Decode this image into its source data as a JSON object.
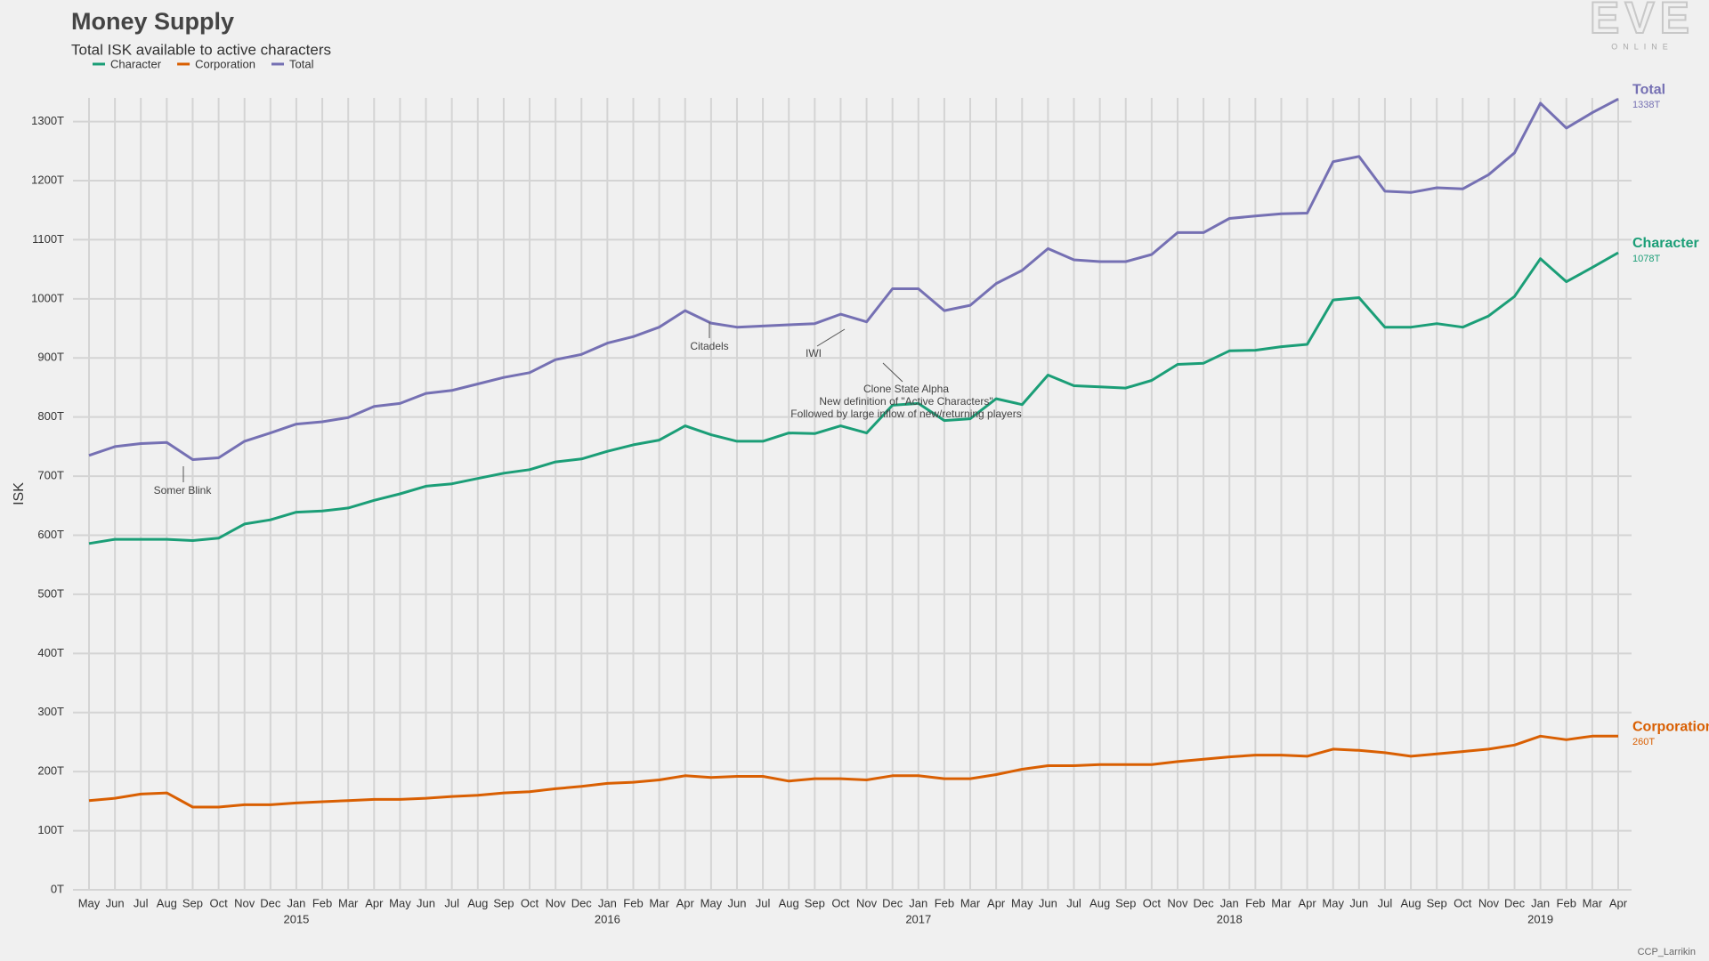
{
  "chart_data": {
    "type": "line",
    "title": "Money Supply",
    "subtitle": "Total ISK available to active characters",
    "y_label": "ISK",
    "logo": {
      "text": "EVE",
      "subtext": "ONLINE"
    },
    "credit": "CCP_Larrikin",
    "grid": true,
    "legend": "top-left",
    "categories": [
      "May",
      "Jun",
      "Jul",
      "Aug",
      "Sep",
      "Oct",
      "Nov",
      "Dec",
      "Jan",
      "Feb",
      "Mar",
      "Apr",
      "May",
      "Jun",
      "Jul",
      "Aug",
      "Sep",
      "Oct",
      "Nov",
      "Dec",
      "Jan",
      "Feb",
      "Mar",
      "Apr",
      "May",
      "Jun",
      "Jul",
      "Aug",
      "Sep",
      "Oct",
      "Nov",
      "Dec",
      "Jan",
      "Feb",
      "Mar",
      "Apr",
      "May",
      "Jun",
      "Jul",
      "Aug",
      "Sep",
      "Oct",
      "Nov",
      "Dec",
      "Jan",
      "Feb",
      "Mar",
      "Apr",
      "May",
      "Jun",
      "Jul",
      "Aug",
      "Sep",
      "Oct",
      "Nov",
      "Dec",
      "Jan",
      "Feb",
      "Mar",
      "Apr"
    ],
    "year_labels": [
      null,
      null,
      null,
      null,
      null,
      null,
      null,
      null,
      "2015",
      null,
      null,
      null,
      null,
      null,
      null,
      null,
      null,
      null,
      null,
      null,
      "2016",
      null,
      null,
      null,
      null,
      null,
      null,
      null,
      null,
      null,
      null,
      null,
      "2017",
      null,
      null,
      null,
      null,
      null,
      null,
      null,
      null,
      null,
      null,
      null,
      "2018",
      null,
      null,
      null,
      null,
      null,
      null,
      null,
      null,
      null,
      null,
      null,
      "2019",
      null,
      null,
      null
    ],
    "ylim": [
      0,
      1340
    ],
    "yticks": [
      {
        "value": 0,
        "label": "0T"
      },
      {
        "value": 100,
        "label": "100T"
      },
      {
        "value": 200,
        "label": "200T"
      },
      {
        "value": 300,
        "label": "300T"
      },
      {
        "value": 400,
        "label": "400T"
      },
      {
        "value": 500,
        "label": "500T"
      },
      {
        "value": 600,
        "label": "600T"
      },
      {
        "value": 700,
        "label": "700T"
      },
      {
        "value": 800,
        "label": "800T"
      },
      {
        "value": 900,
        "label": "900T"
      },
      {
        "value": 1000,
        "label": "1000T"
      },
      {
        "value": 1100,
        "label": "1100T"
      },
      {
        "value": 1200,
        "label": "1200T"
      },
      {
        "value": 1300,
        "label": "1300T"
      }
    ],
    "series": [
      {
        "name": "Character",
        "color": "#1b9e77",
        "values": [
          586,
          593,
          593,
          593,
          591,
          595,
          619,
          626,
          639,
          641,
          646,
          659,
          670,
          683,
          687,
          696,
          705,
          711,
          724,
          729,
          742,
          753,
          761,
          785,
          770,
          759,
          759,
          773,
          772,
          785,
          773,
          820,
          823,
          794,
          797,
          831,
          821,
          871,
          853,
          851,
          849,
          862,
          889,
          891,
          912,
          913,
          919,
          923,
          998,
          1002,
          952,
          952,
          958,
          952,
          971,
          1004,
          1068,
          1029,
          1053,
          1078
        ],
        "value_labels": [
          null,
          null,
          null,
          null,
          null,
          null,
          null,
          null,
          null,
          null,
          null,
          null,
          null,
          null,
          null,
          null,
          null,
          null,
          null,
          null,
          null,
          null,
          null,
          null,
          null,
          null,
          null,
          null,
          null,
          null,
          null,
          null,
          null,
          null,
          null,
          null,
          null,
          null,
          null,
          null,
          null,
          null,
          null,
          null,
          null,
          null,
          null,
          null,
          null,
          null,
          null,
          null,
          null,
          null,
          null,
          null,
          null,
          null,
          null,
          "1078T"
        ]
      },
      {
        "name": "Corporation",
        "color": "#d95f02",
        "values": [
          151,
          155,
          162,
          164,
          140,
          140,
          144,
          144,
          147,
          149,
          151,
          153,
          153,
          155,
          158,
          160,
          164,
          166,
          171,
          175,
          180,
          182,
          186,
          193,
          190,
          192,
          192,
          184,
          188,
          188,
          186,
          193,
          193,
          188,
          188,
          195,
          204,
          210,
          210,
          212,
          212,
          212,
          217,
          221,
          225,
          228,
          228,
          226,
          238,
          236,
          232,
          226,
          230,
          234,
          238,
          245,
          260,
          254,
          260,
          260
        ],
        "value_labels": [
          null,
          null,
          null,
          null,
          null,
          null,
          null,
          null,
          null,
          null,
          null,
          null,
          null,
          null,
          null,
          null,
          null,
          null,
          null,
          null,
          null,
          null,
          null,
          null,
          null,
          null,
          null,
          null,
          null,
          null,
          null,
          null,
          null,
          null,
          null,
          null,
          null,
          null,
          null,
          null,
          null,
          null,
          null,
          null,
          null,
          null,
          null,
          null,
          null,
          null,
          null,
          null,
          null,
          null,
          null,
          null,
          null,
          null,
          null,
          "260T"
        ]
      },
      {
        "name": "Total",
        "color": "#7570b3",
        "values": [
          735,
          750,
          755,
          757,
          728,
          731,
          759,
          773,
          788,
          792,
          799,
          818,
          823,
          840,
          845,
          856,
          867,
          875,
          897,
          906,
          925,
          936,
          952,
          980,
          959,
          952,
          954,
          956,
          958,
          974,
          961,
          1017,
          1017,
          980,
          989,
          1026,
          1048,
          1085,
          1066,
          1063,
          1063,
          1075,
          1112,
          1112,
          1136,
          1140,
          1144,
          1145,
          1232,
          1241,
          1182,
          1180,
          1188,
          1186,
          1210,
          1247,
          1331,
          1289,
          1315,
          1338
        ],
        "value_labels": [
          null,
          null,
          null,
          null,
          null,
          null,
          null,
          null,
          null,
          null,
          null,
          null,
          null,
          null,
          null,
          null,
          null,
          null,
          null,
          null,
          null,
          null,
          null,
          null,
          null,
          null,
          null,
          null,
          null,
          null,
          null,
          null,
          null,
          null,
          null,
          null,
          null,
          null,
          null,
          null,
          null,
          null,
          null,
          null,
          null,
          null,
          null,
          null,
          null,
          null,
          null,
          null,
          null,
          null,
          null,
          null,
          null,
          null,
          null,
          "1338T"
        ]
      }
    ],
    "annotations": [
      {
        "lines": [
          "Somer Blink"
        ]
      },
      {
        "lines": [
          "Citadels"
        ]
      },
      {
        "lines": [
          "IWI"
        ]
      },
      {
        "lines": [
          "Clone State Alpha",
          "New definition of \"Active Characters\"",
          "Followed by large inflow of new/returning players"
        ]
      }
    ]
  }
}
